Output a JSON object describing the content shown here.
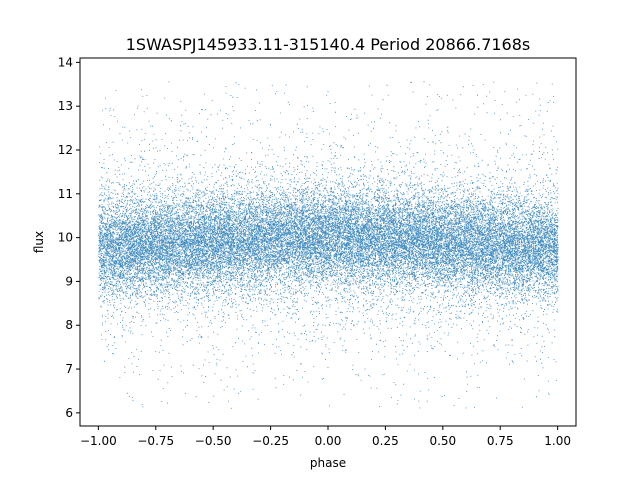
{
  "chart_data": {
    "type": "scatter",
    "title": "1SWASPJ145933.11-315140.4 Period 20866.7168s",
    "xlabel": "phase",
    "ylabel": "flux",
    "xlim": [
      -1.08,
      1.08
    ],
    "ylim": [
      5.7,
      14.1
    ],
    "xticks": [
      -1.0,
      -0.75,
      -0.5,
      -0.25,
      0.0,
      0.25,
      0.5,
      0.75,
      1.0
    ],
    "xtick_labels": [
      "−1.00",
      "−0.75",
      "−0.50",
      "−0.25",
      "0.00",
      "0.25",
      "0.50",
      "0.75",
      "1.00"
    ],
    "yticks": [
      6,
      7,
      8,
      9,
      10,
      11,
      12,
      13,
      14
    ],
    "ytick_labels": [
      "6",
      "7",
      "8",
      "9",
      "10",
      "11",
      "12",
      "13",
      "14"
    ],
    "grid": false,
    "legend": "none",
    "series": [
      {
        "color": "#1f77b4",
        "phase_range": [
          -1.0,
          1.0
        ],
        "flux_center": 9.9,
        "flux_core_spread": 0.55,
        "flux_range": [
          6.1,
          13.6
        ]
      }
    ]
  }
}
